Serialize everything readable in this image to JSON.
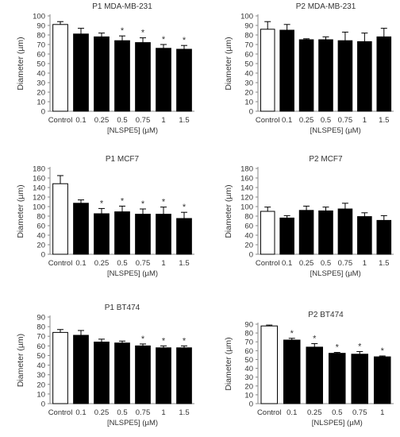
{
  "chart_data": [
    {
      "type": "bar",
      "title": "P1 MDA-MB-231",
      "xlabel": "[NLSPE5] (µM)",
      "ylabel": "Diameter (µm)",
      "ylim": [
        0,
        100
      ],
      "ytick_step": 10,
      "categories": [
        "Control",
        "0.1",
        "0.25",
        "0.5",
        "0.75",
        "1",
        "1.5"
      ],
      "values": [
        91,
        81,
        78,
        74,
        72,
        66,
        65
      ],
      "errors": [
        3,
        6,
        4,
        5,
        5,
        4,
        4
      ],
      "significance": [
        "",
        "",
        "",
        "*",
        "*",
        "*",
        "*"
      ]
    },
    {
      "type": "bar",
      "title": "P2 MDA-MB-231",
      "xlabel": "[NLSPE5] (µM)",
      "ylabel": "Diameter (µm)",
      "ylim": [
        0,
        100
      ],
      "ytick_step": 10,
      "categories": [
        "Control",
        "0.1",
        "0.25",
        "0.5",
        "0.75",
        "1",
        "1.5"
      ],
      "values": [
        86,
        85,
        75,
        75,
        74,
        73,
        78
      ],
      "errors": [
        8,
        6,
        1,
        3,
        9,
        9,
        9
      ],
      "significance": [
        "",
        "",
        "",
        "",
        "",
        "",
        ""
      ]
    },
    {
      "type": "bar",
      "title": "P1 MCF7",
      "xlabel": "[NLSPE5] (µM)",
      "ylabel": "Diameter (µm)",
      "ylim": [
        0,
        180
      ],
      "ytick_step": 20,
      "categories": [
        "Control",
        "0.1",
        "0.25",
        "0.5",
        "0.75",
        "1",
        "1.5"
      ],
      "values": [
        148,
        107,
        85,
        89,
        84,
        84,
        75
      ],
      "errors": [
        17,
        7,
        11,
        12,
        11,
        15,
        13
      ],
      "significance": [
        "",
        "",
        "*",
        "*",
        "*",
        "*",
        "*"
      ]
    },
    {
      "type": "bar",
      "title": "P2 MCF7",
      "xlabel": "[NLSPE5] (µM)",
      "ylabel": "Diameter (µm)",
      "ylim": [
        0,
        180
      ],
      "ytick_step": 20,
      "categories": [
        "Control",
        "0.1",
        "0.25",
        "0.5",
        "0.75",
        "1",
        "1.5"
      ],
      "values": [
        90,
        76,
        92,
        91,
        95,
        79,
        71
      ],
      "errors": [
        9,
        5,
        9,
        8,
        12,
        8,
        10
      ],
      "significance": [
        "",
        "",
        "",
        "",
        "",
        "",
        ""
      ]
    },
    {
      "type": "bar",
      "title": "P1 BT474",
      "xlabel": "[NLSPE5] (µM)",
      "ylabel": "Diameter (µm)",
      "ylim": [
        0,
        90
      ],
      "ytick_step": 10,
      "categories": [
        "Control",
        "0.1",
        "0.25",
        "0.5",
        "0.75",
        "1",
        "1.5"
      ],
      "values": [
        74,
        71,
        64,
        63,
        60,
        58,
        58
      ],
      "errors": [
        3,
        5,
        3,
        2,
        2,
        2,
        2
      ],
      "significance": [
        "",
        "",
        "",
        "",
        "*",
        "*",
        "*"
      ]
    },
    {
      "type": "bar",
      "title": "P2 BT474",
      "xlabel": "[NLSPE5] (µM)",
      "ylabel": "Diameter (µm)",
      "ylim": [
        0,
        90
      ],
      "ytick_step": 10,
      "categories": [
        "Control",
        "0.1",
        "0.25",
        "0.5",
        "0.75",
        "1"
      ],
      "values": [
        88,
        72,
        64,
        57,
        56,
        53
      ],
      "errors": [
        1,
        2,
        4,
        1,
        3,
        1
      ],
      "significance": [
        "",
        "*",
        "*",
        "*",
        "*",
        "*"
      ]
    }
  ]
}
